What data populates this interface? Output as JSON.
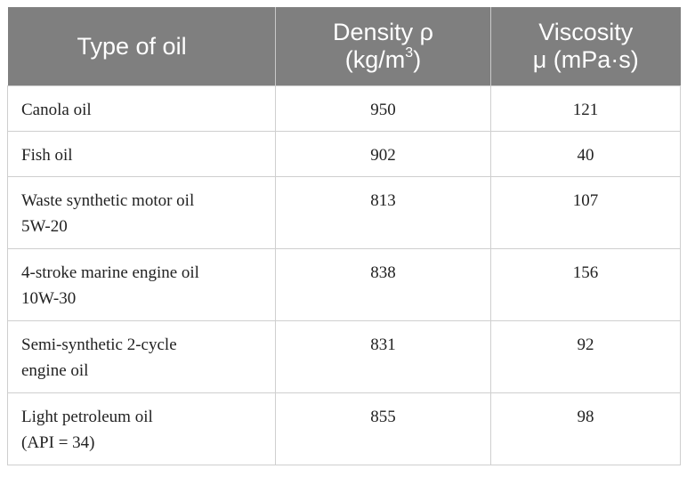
{
  "table": {
    "headers": [
      {
        "lines": [
          "Type of oil"
        ]
      },
      {
        "lines": [
          "Density ρ",
          "(kg/m",
          ")"
        ],
        "superscript": "3"
      },
      {
        "lines": [
          "Viscosity",
          "μ (mPa·s)"
        ]
      }
    ],
    "rows": [
      {
        "name_lines": [
          "Canola oil"
        ],
        "density": "950",
        "viscosity": "121"
      },
      {
        "name_lines": [
          "Fish oil"
        ],
        "density": "902",
        "viscosity": "40"
      },
      {
        "name_lines": [
          "Waste synthetic motor oil",
          "5W-20"
        ],
        "density": "813",
        "viscosity": "107"
      },
      {
        "name_lines": [
          "4-stroke marine engine oil",
          "10W-30"
        ],
        "density": "838",
        "viscosity": "156"
      },
      {
        "name_lines": [
          "Semi-synthetic 2-cycle",
          "engine oil"
        ],
        "density": "831",
        "viscosity": "92"
      },
      {
        "name_lines": [
          "Light petroleum oil",
          "(API = 34)"
        ],
        "density": "855",
        "viscosity": "98"
      }
    ]
  },
  "colors": {
    "header_bg": "#7f7f7f",
    "header_text": "#ffffff",
    "grid": "#cfcfcf"
  }
}
